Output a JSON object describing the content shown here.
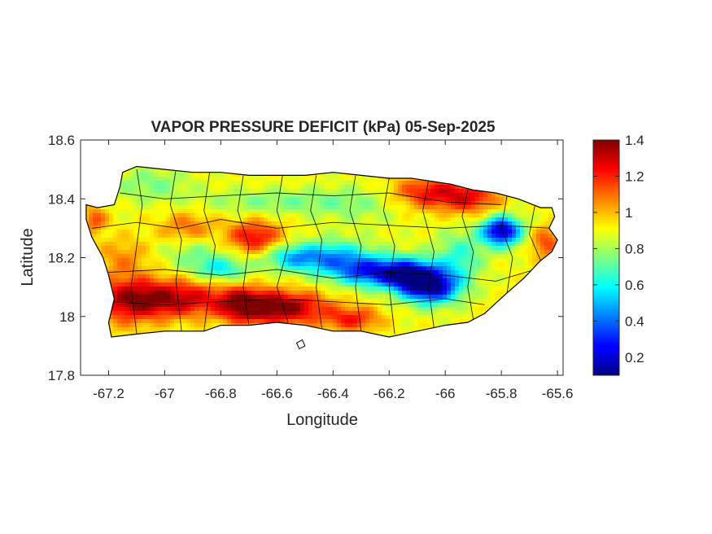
{
  "chart_data": {
    "type": "heatmap",
    "title": "VAPOR PRESSURE DEFICIT (kPa) 05-Sep-2025",
    "xlabel": "Longitude",
    "ylabel": "Latitude",
    "xlim": [
      -67.3,
      -65.58
    ],
    "ylim": [
      17.8,
      18.6
    ],
    "x_ticks": [
      -67.2,
      -67,
      -66.8,
      -66.6,
      -66.4,
      -66.2,
      -66,
      -65.8,
      -65.6
    ],
    "x_tick_labels": [
      "-67.2",
      "-67",
      "-66.8",
      "-66.6",
      "-66.4",
      "-66.2",
      "-66",
      "-65.8",
      "-65.6"
    ],
    "y_ticks": [
      17.8,
      18,
      18.2,
      18.4,
      18.6
    ],
    "y_tick_labels": [
      "17.8",
      "18",
      "18.2",
      "18.4",
      "18.6"
    ],
    "colorbar": {
      "colormap": "jet",
      "range": [
        0.1,
        1.4
      ],
      "ticks": [
        0.2,
        0.4,
        0.6,
        0.8,
        1,
        1.2,
        1.4
      ],
      "tick_labels": [
        "0.2",
        "0.4",
        "0.6",
        "0.8",
        "1",
        "1.2",
        "1.4"
      ]
    },
    "field": {
      "base_value": 0.9,
      "features": [
        {
          "lon": -66.98,
          "lat": 18.06,
          "value": 1.35,
          "sigma_lon": 0.14,
          "sigma_lat": 0.045
        },
        {
          "lon": -67.14,
          "lat": 18.05,
          "value": 1.15,
          "sigma_lon": 0.08,
          "sigma_lat": 0.06
        },
        {
          "lon": -66.58,
          "lat": 18.03,
          "value": 1.4,
          "sigma_lon": 0.11,
          "sigma_lat": 0.04
        },
        {
          "lon": -66.72,
          "lat": 18.04,
          "value": 1.25,
          "sigma_lon": 0.06,
          "sigma_lat": 0.04
        },
        {
          "lon": -66.33,
          "lat": 17.99,
          "value": 1.2,
          "sigma_lon": 0.07,
          "sigma_lat": 0.03
        },
        {
          "lon": -66.68,
          "lat": 18.27,
          "value": 1.25,
          "sigma_lon": 0.07,
          "sigma_lat": 0.04
        },
        {
          "lon": -66.92,
          "lat": 18.3,
          "value": 1.1,
          "sigma_lon": 0.07,
          "sigma_lat": 0.04
        },
        {
          "lon": -66.05,
          "lat": 18.42,
          "value": 1.25,
          "sigma_lon": 0.1,
          "sigma_lat": 0.04
        },
        {
          "lon": -65.9,
          "lat": 18.4,
          "value": 1.15,
          "sigma_lon": 0.07,
          "sigma_lat": 0.04
        },
        {
          "lon": -65.64,
          "lat": 18.25,
          "value": 1.15,
          "sigma_lon": 0.04,
          "sigma_lat": 0.04
        },
        {
          "lon": -67.25,
          "lat": 18.33,
          "value": 1.15,
          "sigma_lon": 0.03,
          "sigma_lat": 0.03
        },
        {
          "lon": -67.15,
          "lat": 18.2,
          "value": 1.05,
          "sigma_lon": 0.07,
          "sigma_lat": 0.05
        },
        {
          "lon": -66.25,
          "lat": 18.15,
          "value": 0.35,
          "sigma_lon": 0.1,
          "sigma_lat": 0.035
        },
        {
          "lon": -66.4,
          "lat": 18.2,
          "value": 0.5,
          "sigma_lon": 0.1,
          "sigma_lat": 0.04
        },
        {
          "lon": -66.05,
          "lat": 18.1,
          "value": 0.2,
          "sigma_lon": 0.07,
          "sigma_lat": 0.04
        },
        {
          "lon": -66.12,
          "lat": 18.14,
          "value": 0.4,
          "sigma_lon": 0.07,
          "sigma_lat": 0.04
        },
        {
          "lon": -65.8,
          "lat": 18.29,
          "value": 0.15,
          "sigma_lon": 0.05,
          "sigma_lat": 0.035
        },
        {
          "lon": -66.55,
          "lat": 18.2,
          "value": 0.6,
          "sigma_lon": 0.07,
          "sigma_lat": 0.03
        },
        {
          "lon": -66.8,
          "lat": 18.16,
          "value": 0.6,
          "sigma_lon": 0.07,
          "sigma_lat": 0.03
        },
        {
          "lon": -66.6,
          "lat": 18.39,
          "value": 0.75,
          "sigma_lon": 0.2,
          "sigma_lat": 0.03
        },
        {
          "lon": -67.05,
          "lat": 18.45,
          "value": 0.75,
          "sigma_lon": 0.1,
          "sigma_lat": 0.04
        },
        {
          "lon": -66.9,
          "lat": 18.22,
          "value": 0.75,
          "sigma_lon": 0.08,
          "sigma_lat": 0.04
        },
        {
          "lon": -66.3,
          "lat": 18.38,
          "value": 0.8,
          "sigma_lon": 0.12,
          "sigma_lat": 0.05
        },
        {
          "lon": -65.95,
          "lat": 18.2,
          "value": 0.65,
          "sigma_lon": 0.06,
          "sigma_lat": 0.06
        }
      ]
    },
    "island_outline": [
      [
        -67.28,
        18.38
      ],
      [
        -67.24,
        18.37
      ],
      [
        -67.18,
        18.38
      ],
      [
        -67.16,
        18.44
      ],
      [
        -67.15,
        18.49
      ],
      [
        -67.1,
        18.51
      ],
      [
        -67.0,
        18.5
      ],
      [
        -66.9,
        18.49
      ],
      [
        -66.8,
        18.49
      ],
      [
        -66.7,
        18.48
      ],
      [
        -66.6,
        18.48
      ],
      [
        -66.5,
        18.48
      ],
      [
        -66.4,
        18.49
      ],
      [
        -66.3,
        18.48
      ],
      [
        -66.2,
        18.47
      ],
      [
        -66.12,
        18.47
      ],
      [
        -66.05,
        18.46
      ],
      [
        -65.98,
        18.45
      ],
      [
        -65.9,
        18.43
      ],
      [
        -65.82,
        18.42
      ],
      [
        -65.74,
        18.4
      ],
      [
        -65.66,
        18.37
      ],
      [
        -65.62,
        18.37
      ],
      [
        -65.61,
        18.34
      ],
      [
        -65.63,
        18.3
      ],
      [
        -65.6,
        18.26
      ],
      [
        -65.62,
        18.22
      ],
      [
        -65.66,
        18.19
      ],
      [
        -65.72,
        18.13
      ],
      [
        -65.78,
        18.08
      ],
      [
        -65.86,
        18.01
      ],
      [
        -65.92,
        17.98
      ],
      [
        -66.0,
        17.97
      ],
      [
        -66.1,
        17.95
      ],
      [
        -66.2,
        17.93
      ],
      [
        -66.3,
        17.95
      ],
      [
        -66.4,
        17.95
      ],
      [
        -66.5,
        17.97
      ],
      [
        -66.6,
        17.98
      ],
      [
        -66.7,
        17.97
      ],
      [
        -66.8,
        17.97
      ],
      [
        -66.86,
        17.95
      ],
      [
        -66.94,
        17.95
      ],
      [
        -67.0,
        17.95
      ],
      [
        -67.1,
        17.94
      ],
      [
        -67.19,
        17.93
      ],
      [
        -67.2,
        17.98
      ],
      [
        -67.18,
        18.06
      ],
      [
        -67.2,
        18.14
      ],
      [
        -67.22,
        18.2
      ],
      [
        -67.26,
        18.27
      ],
      [
        -67.28,
        18.33
      ]
    ],
    "municipal_boundaries": [
      [
        [
          -67.1,
          18.5
        ],
        [
          -67.08,
          18.38
        ],
        [
          -67.1,
          18.24
        ],
        [
          -67.12,
          18.1
        ],
        [
          -67.1,
          17.94
        ]
      ],
      [
        [
          -66.96,
          18.5
        ],
        [
          -66.98,
          18.38
        ],
        [
          -66.94,
          18.26
        ],
        [
          -66.96,
          18.12
        ],
        [
          -66.94,
          17.95
        ]
      ],
      [
        [
          -66.84,
          18.49
        ],
        [
          -66.86,
          18.36
        ],
        [
          -66.82,
          18.24
        ],
        [
          -66.84,
          18.1
        ],
        [
          -66.86,
          17.95
        ]
      ],
      [
        [
          -66.72,
          18.48
        ],
        [
          -66.74,
          18.36
        ],
        [
          -66.7,
          18.24
        ],
        [
          -66.72,
          18.1
        ],
        [
          -66.7,
          17.97
        ]
      ],
      [
        [
          -66.58,
          18.48
        ],
        [
          -66.6,
          18.36
        ],
        [
          -66.56,
          18.24
        ],
        [
          -66.6,
          18.1
        ],
        [
          -66.56,
          17.98
        ]
      ],
      [
        [
          -66.46,
          18.48
        ],
        [
          -66.48,
          18.36
        ],
        [
          -66.44,
          18.26
        ],
        [
          -66.46,
          18.1
        ],
        [
          -66.44,
          17.96
        ]
      ],
      [
        [
          -66.32,
          18.48
        ],
        [
          -66.34,
          18.36
        ],
        [
          -66.3,
          18.24
        ],
        [
          -66.32,
          18.1
        ],
        [
          -66.3,
          17.95
        ]
      ],
      [
        [
          -66.2,
          18.47
        ],
        [
          -66.22,
          18.36
        ],
        [
          -66.18,
          18.24
        ],
        [
          -66.2,
          18.1
        ],
        [
          -66.18,
          17.94
        ]
      ],
      [
        [
          -66.06,
          18.46
        ],
        [
          -66.08,
          18.36
        ],
        [
          -66.04,
          18.22
        ],
        [
          -66.06,
          18.1
        ],
        [
          -66.04,
          17.96
        ]
      ],
      [
        [
          -65.92,
          18.43
        ],
        [
          -65.94,
          18.34
        ],
        [
          -65.9,
          18.22
        ],
        [
          -65.92,
          18.1
        ],
        [
          -65.9,
          17.99
        ]
      ],
      [
        [
          -65.78,
          18.41
        ],
        [
          -65.8,
          18.3
        ],
        [
          -65.76,
          18.2
        ],
        [
          -65.78,
          18.08
        ]
      ],
      [
        [
          -65.68,
          18.38
        ],
        [
          -65.7,
          18.28
        ],
        [
          -65.66,
          18.19
        ]
      ],
      [
        [
          -67.26,
          18.3
        ],
        [
          -67.1,
          18.32
        ],
        [
          -66.95,
          18.3
        ],
        [
          -66.8,
          18.33
        ],
        [
          -66.6,
          18.3
        ],
        [
          -66.4,
          18.32
        ],
        [
          -66.2,
          18.31
        ],
        [
          -66.0,
          18.3
        ],
        [
          -65.8,
          18.31
        ],
        [
          -65.62,
          18.3
        ]
      ],
      [
        [
          -67.2,
          18.15
        ],
        [
          -67.0,
          18.16
        ],
        [
          -66.8,
          18.14
        ],
        [
          -66.6,
          18.16
        ],
        [
          -66.4,
          18.13
        ],
        [
          -66.2,
          18.15
        ],
        [
          -66.0,
          18.14
        ],
        [
          -65.82,
          18.12
        ],
        [
          -65.68,
          18.16
        ]
      ],
      [
        [
          -67.16,
          18.42
        ],
        [
          -67.0,
          18.4
        ],
        [
          -66.8,
          18.41
        ],
        [
          -66.6,
          18.42
        ],
        [
          -66.4,
          18.41
        ],
        [
          -66.2,
          18.42
        ],
        [
          -66.0,
          18.39
        ],
        [
          -65.8,
          18.38
        ]
      ],
      [
        [
          -67.19,
          18.05
        ],
        [
          -67.0,
          18.04
        ],
        [
          -66.8,
          18.05
        ],
        [
          -66.6,
          18.06
        ],
        [
          -66.4,
          18.05
        ],
        [
          -66.2,
          18.04
        ],
        [
          -66.0,
          18.06
        ],
        [
          -65.86,
          18.04
        ]
      ]
    ],
    "offshore_islets": [
      [
        [
          -66.53,
          17.91
        ],
        [
          -66.51,
          17.92
        ],
        [
          -66.5,
          17.9
        ],
        [
          -66.52,
          17.89
        ]
      ],
      [
        [
          -65.58,
          18.36
        ],
        [
          -65.57,
          18.37
        ],
        [
          -65.56,
          18.35
        ]
      ]
    ]
  }
}
